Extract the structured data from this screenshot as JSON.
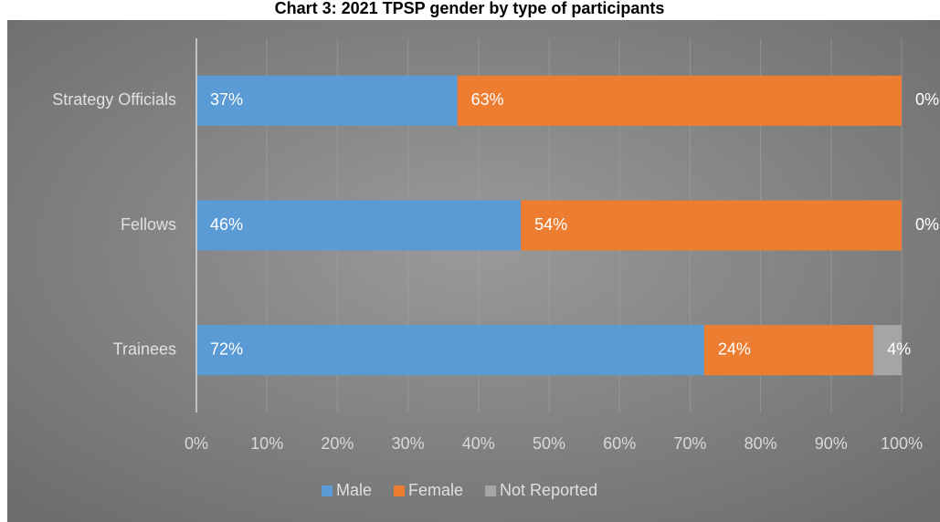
{
  "chart_data": {
    "type": "stacked-barh",
    "title": "Chart 3: 2021 TPSP gender by type of participants",
    "categories": [
      "Strategy Officials",
      "Fellows",
      "Trainees"
    ],
    "series": [
      {
        "name": "Male",
        "color": "#5b9bd5",
        "values": [
          37,
          46,
          72
        ],
        "value_labels": [
          "37%",
          "46%",
          "72%"
        ]
      },
      {
        "name": "Female",
        "color": "#ed7d31",
        "values": [
          63,
          54,
          24
        ],
        "value_labels": [
          "63%",
          "54%",
          "24%"
        ]
      },
      {
        "name": "Not Reported",
        "color": "#a5a5a5",
        "values": [
          0,
          0,
          4
        ],
        "value_labels": [
          "0%",
          "0%",
          "4%"
        ]
      }
    ],
    "xlim": [
      0,
      100
    ],
    "xticks": [
      {
        "value": 0,
        "label": "0%"
      },
      {
        "value": 10,
        "label": "10%"
      },
      {
        "value": 20,
        "label": "20%"
      },
      {
        "value": 30,
        "label": "30%"
      },
      {
        "value": 40,
        "label": "40%"
      },
      {
        "value": 50,
        "label": "50%"
      },
      {
        "value": 60,
        "label": "60%"
      },
      {
        "value": 70,
        "label": "70%"
      },
      {
        "value": 80,
        "label": "80%"
      },
      {
        "value": 90,
        "label": "90%"
      },
      {
        "value": 100,
        "label": "100%"
      }
    ],
    "grid": true,
    "legend": "bottom"
  }
}
